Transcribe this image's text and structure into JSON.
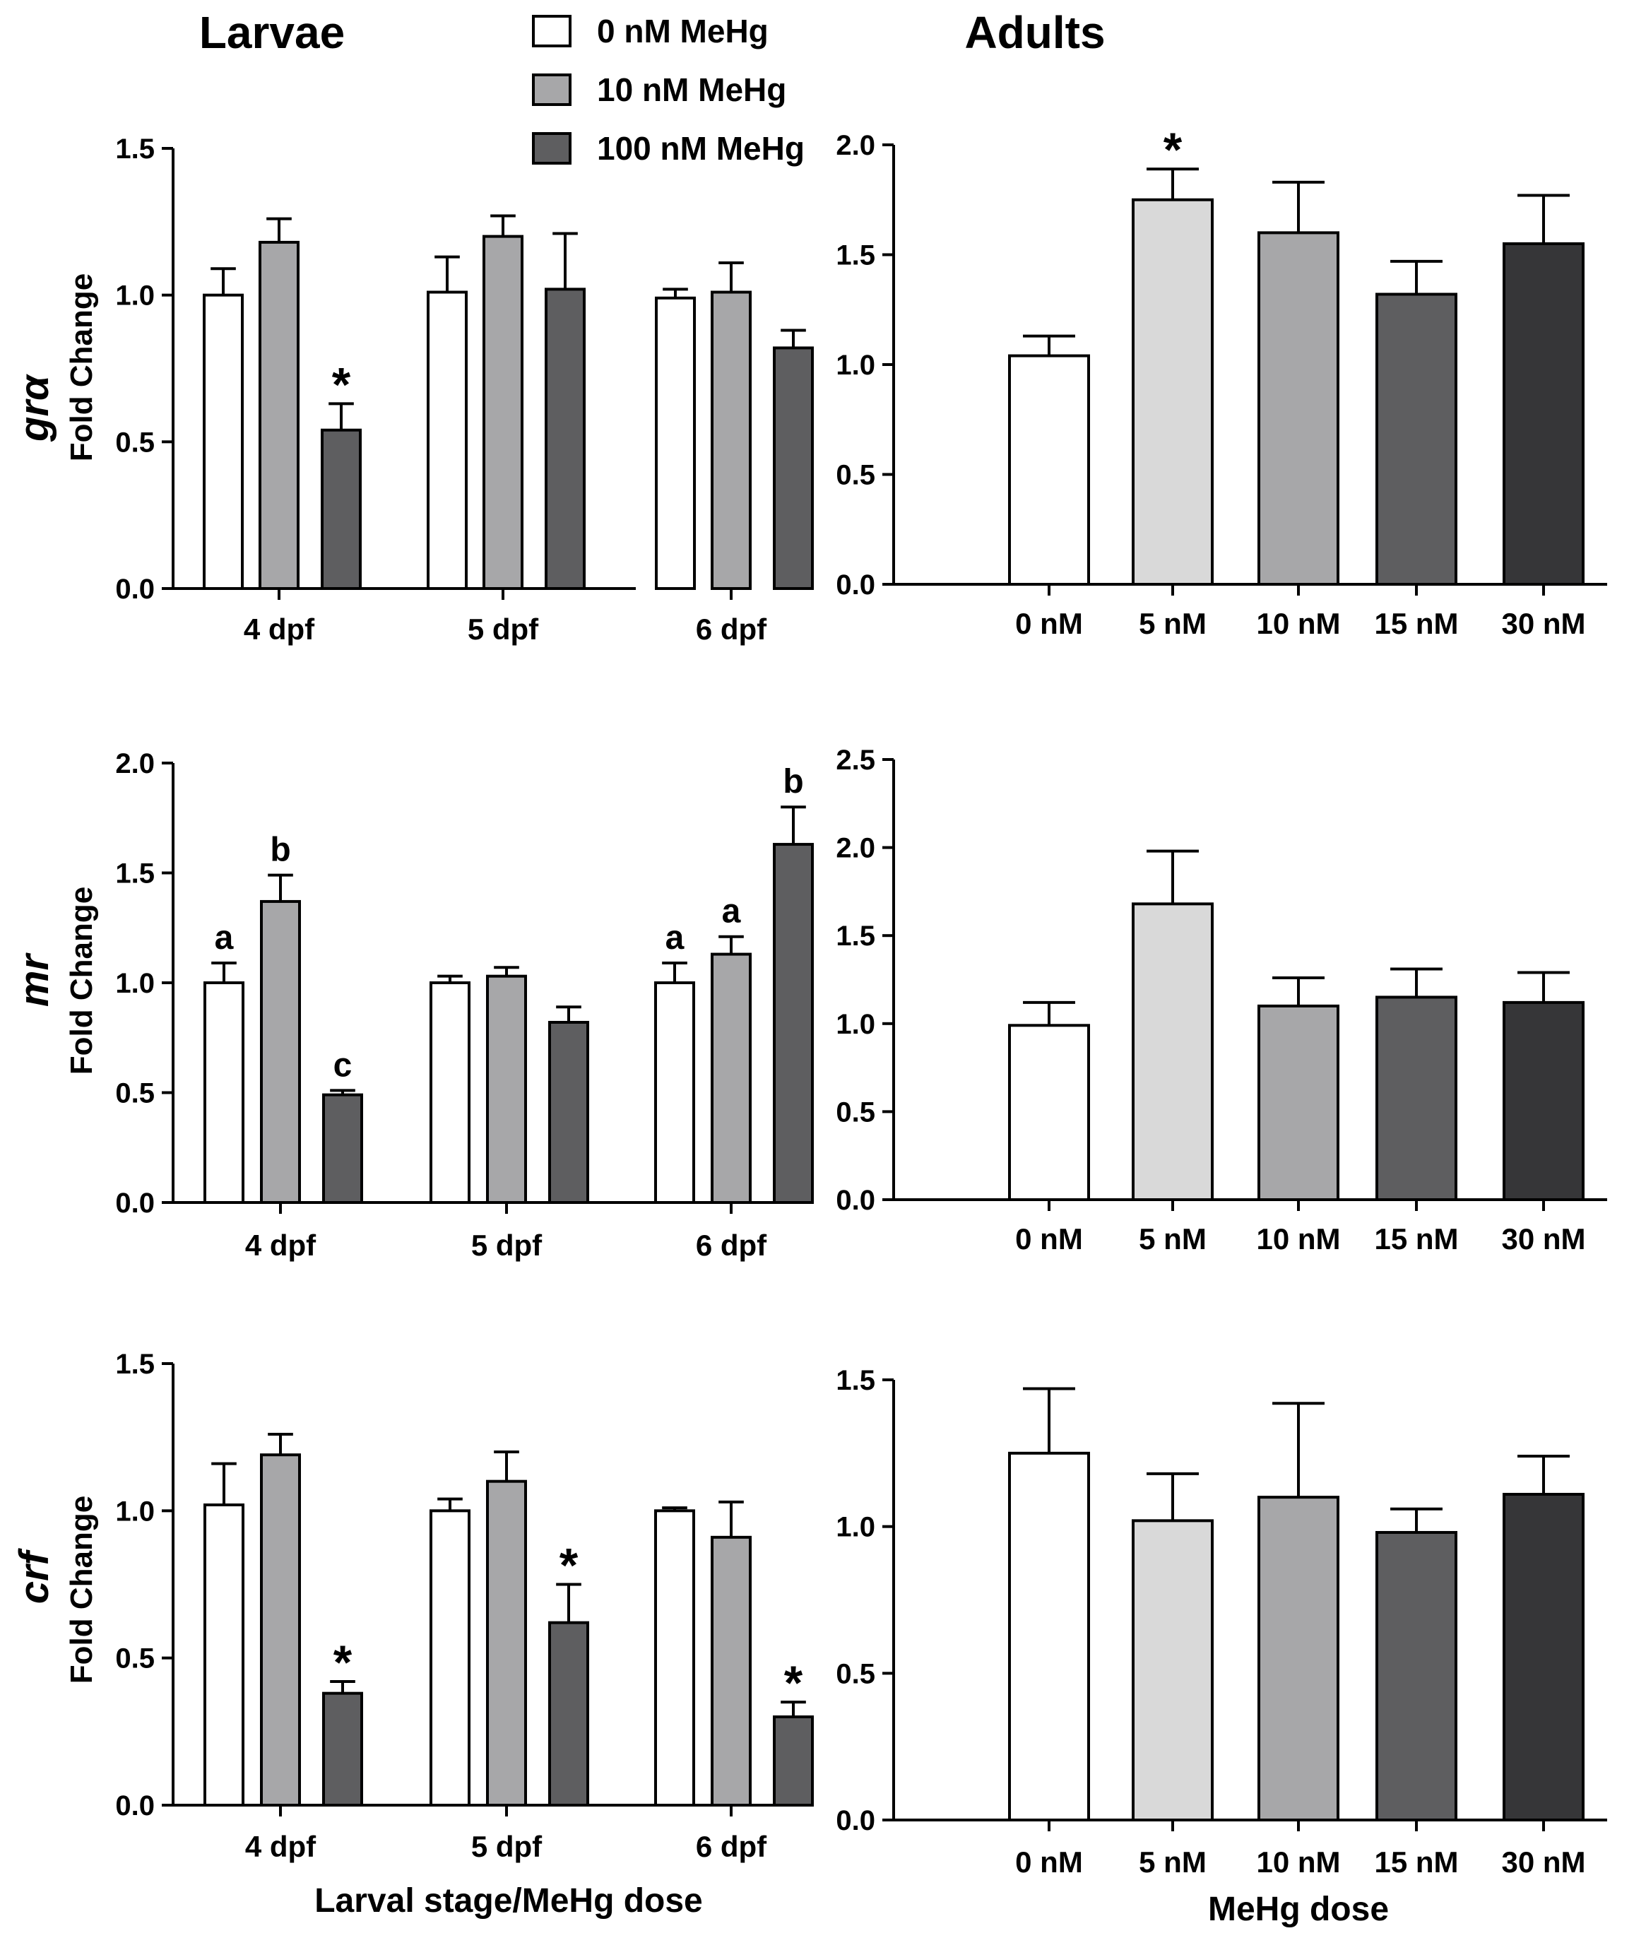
{
  "titles": {
    "larvae": "Larvae",
    "adults": "Adults"
  },
  "legend": [
    {
      "label": "0 nM MeHg",
      "color": "#ffffff"
    },
    {
      "label": "10 nM MeHg",
      "color": "#a7a7a9"
    },
    {
      "label": "100 nM MeHg",
      "color": "#5e5e60"
    }
  ],
  "axis_labels": {
    "fold_change": "Fold Change",
    "larvae_x": "Larval stage/MeHg dose",
    "adult_x": "MeHg dose"
  },
  "genes": [
    "grα",
    "mr",
    "crf"
  ],
  "chart_data": [
    {
      "type": "bar",
      "id": "larvae-gra",
      "gene": "grα",
      "ylabel": "Fold Change",
      "categories": [
        "4 dpf",
        "5 dpf",
        "6 dpf"
      ],
      "ylim": [
        0,
        1.5
      ],
      "yticks": [
        "0.0",
        "0.5",
        "1.0",
        "1.5"
      ],
      "series": [
        {
          "name": "0 nM MeHg",
          "color": "#ffffff",
          "values": [
            1.0,
            1.01,
            0.99
          ],
          "errors": [
            0.09,
            0.12,
            0.03
          ],
          "annotations": [
            "",
            "",
            ""
          ]
        },
        {
          "name": "10 nM MeHg",
          "color": "#a7a7a9",
          "values": [
            1.18,
            1.2,
            1.01
          ],
          "errors": [
            0.08,
            0.07,
            0.1
          ],
          "annotations": [
            "",
            "",
            ""
          ]
        },
        {
          "name": "100 nM MeHg",
          "color": "#5e5e60",
          "values": [
            0.54,
            1.02,
            0.82
          ],
          "errors": [
            0.09,
            0.19,
            0.06
          ],
          "annotations": [
            "*",
            "",
            ""
          ]
        }
      ]
    },
    {
      "type": "bar",
      "id": "larvae-mr",
      "gene": "mr",
      "ylabel": "Fold Change",
      "categories": [
        "4 dpf",
        "5 dpf",
        "6 dpf"
      ],
      "ylim": [
        0,
        2.0
      ],
      "yticks": [
        "0.0",
        "0.5",
        "1.0",
        "1.5",
        "2.0"
      ],
      "series": [
        {
          "name": "0 nM MeHg",
          "color": "#ffffff",
          "values": [
            1.0,
            1.0,
            1.0
          ],
          "errors": [
            0.09,
            0.03,
            0.09
          ],
          "annotations": [
            "a",
            "",
            "a"
          ]
        },
        {
          "name": "10 nM MeHg",
          "color": "#a7a7a9",
          "values": [
            1.37,
            1.03,
            1.13
          ],
          "errors": [
            0.12,
            0.04,
            0.08
          ],
          "annotations": [
            "b",
            "",
            "a"
          ]
        },
        {
          "name": "100 nM MeHg",
          "color": "#5e5e60",
          "values": [
            0.49,
            0.82,
            1.63
          ],
          "errors": [
            0.02,
            0.07,
            0.17
          ],
          "annotations": [
            "c",
            "",
            "b"
          ]
        }
      ]
    },
    {
      "type": "bar",
      "id": "larvae-crf",
      "gene": "crf",
      "ylabel": "Fold Change",
      "xlabel": "Larval stage/MeHg dose",
      "categories": [
        "4 dpf",
        "5 dpf",
        "6 dpf"
      ],
      "ylim": [
        0,
        1.5
      ],
      "yticks": [
        "0.0",
        "0.5",
        "1.0",
        "1.5"
      ],
      "series": [
        {
          "name": "0 nM MeHg",
          "color": "#ffffff",
          "values": [
            1.02,
            1.0,
            1.0
          ],
          "errors": [
            0.14,
            0.04,
            0.01
          ],
          "annotations": [
            "",
            "",
            ""
          ]
        },
        {
          "name": "10 nM MeHg",
          "color": "#a7a7a9",
          "values": [
            1.19,
            1.1,
            0.91
          ],
          "errors": [
            0.07,
            0.1,
            0.12
          ],
          "annotations": [
            "",
            "",
            ""
          ]
        },
        {
          "name": "100 nM MeHg",
          "color": "#5e5e60",
          "values": [
            0.38,
            0.62,
            0.3
          ],
          "errors": [
            0.04,
            0.13,
            0.05
          ],
          "annotations": [
            "*",
            "*",
            "*"
          ]
        }
      ]
    },
    {
      "type": "bar",
      "id": "adults-gra",
      "categories": [
        "0 nM",
        "5 nM",
        "10 nM",
        "15 nM",
        "30 nM"
      ],
      "ylim": [
        0,
        2.0
      ],
      "yticks": [
        "0.0",
        "0.5",
        "1.0",
        "1.5",
        "2.0"
      ],
      "colors": [
        "#ffffff",
        "#d9d9d9",
        "#a7a7a9",
        "#5e5e60",
        "#363638"
      ],
      "values": [
        1.04,
        1.75,
        1.6,
        1.32,
        1.55
      ],
      "errors": [
        0.09,
        0.14,
        0.23,
        0.15,
        0.22
      ],
      "annotations": [
        "",
        "*",
        "",
        "",
        ""
      ]
    },
    {
      "type": "bar",
      "id": "adults-mr",
      "categories": [
        "0 nM",
        "5 nM",
        "10 nM",
        "15 nM",
        "30 nM"
      ],
      "ylim": [
        0,
        2.5
      ],
      "yticks": [
        "0.0",
        "0.5",
        "1.0",
        "1.5",
        "2.0",
        "2.5"
      ],
      "colors": [
        "#ffffff",
        "#d9d9d9",
        "#a7a7a9",
        "#5e5e60",
        "#363638"
      ],
      "values": [
        0.99,
        1.68,
        1.1,
        1.15,
        1.12
      ],
      "errors": [
        0.13,
        0.3,
        0.16,
        0.16,
        0.17
      ],
      "annotations": [
        "",
        "",
        "",
        "",
        ""
      ]
    },
    {
      "type": "bar",
      "id": "adults-crf",
      "xlabel": "MeHg dose",
      "categories": [
        "0 nM",
        "5 nM",
        "10 nM",
        "15 nM",
        "30 nM"
      ],
      "ylim": [
        0,
        1.5
      ],
      "yticks": [
        "0.0",
        "0.5",
        "1.0",
        "1.5"
      ],
      "colors": [
        "#ffffff",
        "#d9d9d9",
        "#a7a7a9",
        "#5e5e60",
        "#363638"
      ],
      "values": [
        1.25,
        1.02,
        1.1,
        0.98,
        1.11
      ],
      "errors": [
        0.22,
        0.16,
        0.32,
        0.08,
        0.13
      ],
      "annotations": [
        "",
        "",
        "",
        "",
        ""
      ]
    }
  ]
}
